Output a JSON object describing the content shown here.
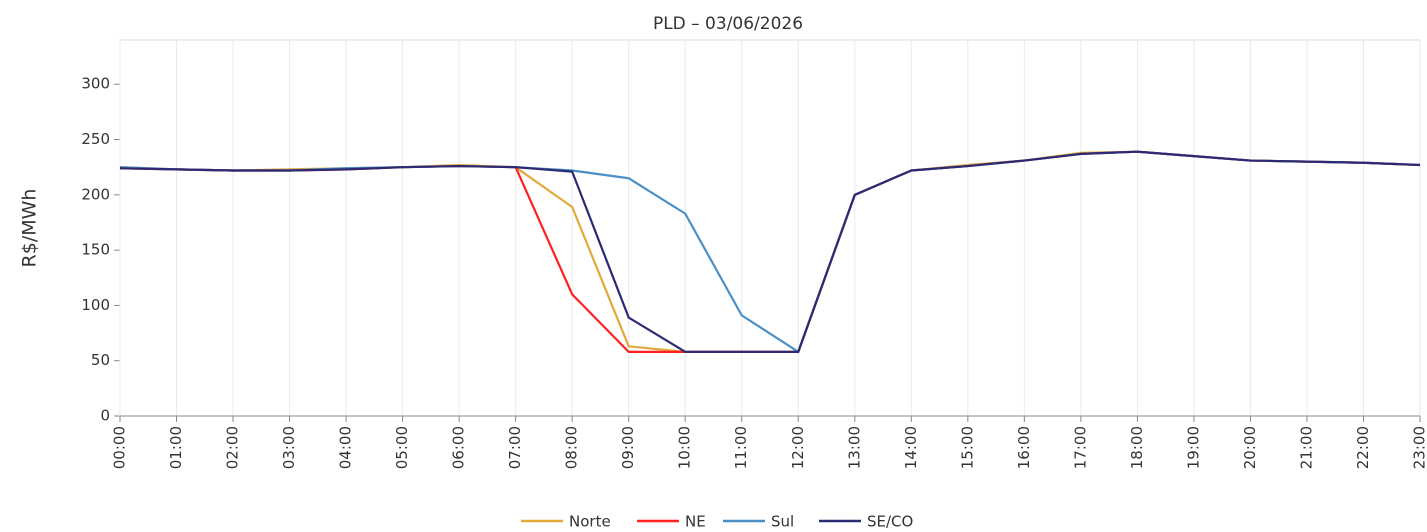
{
  "chart_data": {
    "type": "line",
    "title": "PLD – 03/06/2026",
    "y_label": "R$/MWh",
    "categories": [
      "00:00",
      "01:00",
      "02:00",
      "03:00",
      "04:00",
      "05:00",
      "06:00",
      "07:00",
      "08:00",
      "09:00",
      "10:00",
      "11:00",
      "12:00",
      "13:00",
      "14:00",
      "15:00",
      "16:00",
      "17:00",
      "18:00",
      "19:00",
      "20:00",
      "21:00",
      "22:00",
      "23:00"
    ],
    "series": [
      {
        "name": "Norte",
        "color": "#e3a93a",
        "values": [
          225,
          223,
          222,
          223,
          224,
          225,
          227,
          225,
          189,
          63,
          58,
          58,
          58,
          200,
          222,
          227,
          231,
          238,
          239,
          235,
          231,
          230,
          229,
          227
        ]
      },
      {
        "name": "NE",
        "color": "#ff2020",
        "values": [
          224,
          223,
          222,
          222,
          223,
          225,
          226,
          225,
          110,
          58,
          58,
          58,
          58,
          200,
          222,
          226,
          231,
          237,
          239,
          235,
          231,
          230,
          229,
          227
        ]
      },
      {
        "name": "Sul",
        "color": "#4a90c8",
        "values": [
          225,
          223,
          222,
          222,
          224,
          225,
          226,
          225,
          222,
          215,
          183,
          91,
          58,
          200,
          222,
          226,
          231,
          237,
          239,
          235,
          231,
          230,
          229,
          227
        ]
      },
      {
        "name": "SE/CO",
        "color": "#2b2a73",
        "values": [
          224,
          223,
          222,
          222,
          223,
          225,
          226,
          225,
          221,
          89,
          58,
          58,
          58,
          200,
          222,
          226,
          231,
          237,
          239,
          235,
          231,
          230,
          229,
          227
        ]
      }
    ],
    "ylim": [
      0,
      340
    ],
    "yticks": [
      0,
      50,
      100,
      150,
      200,
      250,
      300
    ],
    "grid": true
  }
}
